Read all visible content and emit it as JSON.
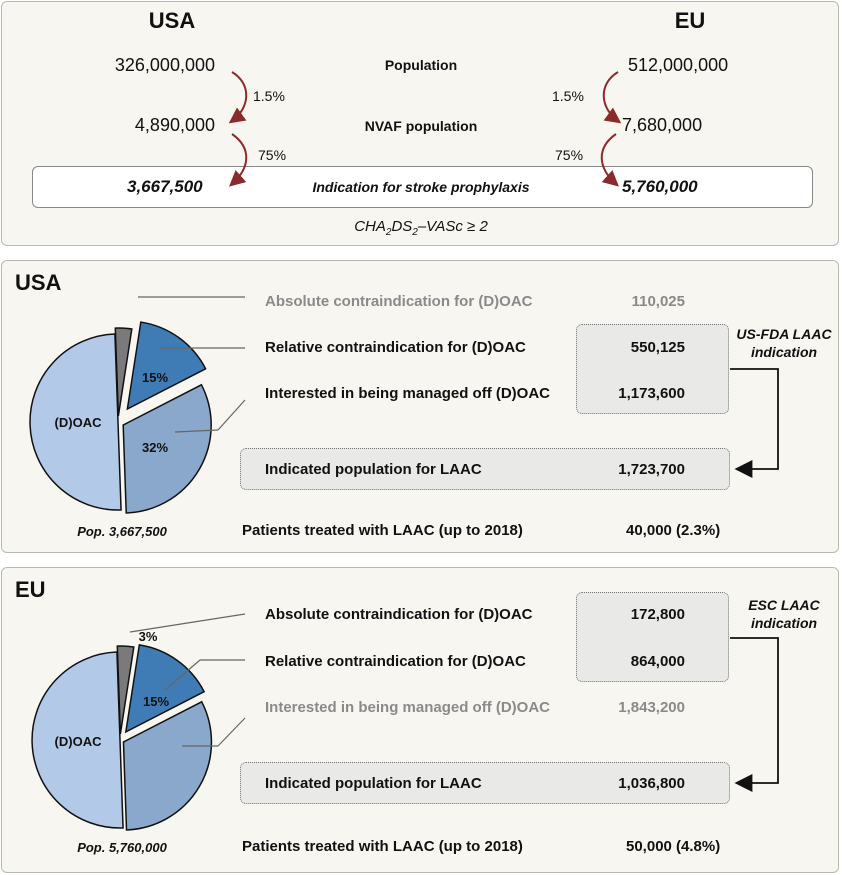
{
  "top": {
    "usa_title": "USA",
    "eu_title": "EU",
    "usa_population": "326,000,000",
    "eu_population": "512,000,000",
    "population_label": "Population",
    "usa_pct1": "1.5%",
    "eu_pct1": "1.5%",
    "usa_nvaf": "4,890,000",
    "eu_nvaf": "7,680,000",
    "nvaf_label": "NVAF population",
    "usa_pct2": "75%",
    "eu_pct2": "75%",
    "usa_indication": "3,667,500",
    "eu_indication": "5,760,000",
    "indication_label": "Indication for stroke prophylaxis",
    "score_cha": "CHA",
    "score_sub2a": "2",
    "score_ds": "DS",
    "score_sub2b": "2",
    "score_rest": "–VASc ≥ 2"
  },
  "usa": {
    "title": "USA",
    "rows": [
      {
        "label": "Absolute contraindication for (D)OAC",
        "value": "110,025"
      },
      {
        "label": "Relative contraindication for (D)OAC",
        "value": "550,125"
      },
      {
        "label": "Interested in being managed off (D)OAC",
        "value": "1,173,600"
      }
    ],
    "indicated_label": "Indicated population for LAAC",
    "indicated_value": "1,723,700",
    "side_label_1": "US-FDA LAAC",
    "side_label_2": "indication",
    "pop_label": "Pop. 3,667,500",
    "treated_label": "Patients treated with LAAC (up to 2018)",
    "treated_value": "40,000 (2.3%)",
    "pie": {
      "slices": [
        {
          "name": "absolute",
          "percent": 3,
          "color": "#7a7a7a",
          "label": ""
        },
        {
          "name": "relative",
          "percent": 15,
          "color": "#3f7cb5",
          "label": "15%"
        },
        {
          "name": "interested",
          "percent": 32,
          "color": "#8aa7cc",
          "label": "32%"
        },
        {
          "name": "doac",
          "percent": 50,
          "color": "#b3c9e8",
          "label": "(D)OAC"
        }
      ]
    }
  },
  "eu": {
    "title": "EU",
    "rows": [
      {
        "label": "Absolute contraindication for (D)OAC",
        "value": "172,800"
      },
      {
        "label": "Relative contraindication for (D)OAC",
        "value": "864,000"
      },
      {
        "label": "Interested in being managed off (D)OAC",
        "value": "1,843,200"
      }
    ],
    "indicated_label": "Indicated population for LAAC",
    "indicated_value": "1,036,800",
    "side_label_1": "ESC LAAC",
    "side_label_2": "indication",
    "pop_label": "Pop. 5,760,000",
    "treated_label": "Patients treated with LAAC (up to 2018)",
    "treated_value": "50,000 (4.8%)",
    "pie": {
      "slices": [
        {
          "name": "absolute",
          "percent": 3,
          "color": "#7a7a7a",
          "label": "3%"
        },
        {
          "name": "relative",
          "percent": 15,
          "color": "#3f7cb5",
          "label": "15%"
        },
        {
          "name": "interested",
          "percent": 32,
          "color": "#8aa7cc",
          "label": ""
        },
        {
          "name": "doac",
          "percent": 50,
          "color": "#b3c9e8",
          "label": "(D)OAC"
        }
      ]
    }
  },
  "colors": {
    "arrow": "#8b2a2a",
    "panel_bg": "#f7f6f1"
  }
}
